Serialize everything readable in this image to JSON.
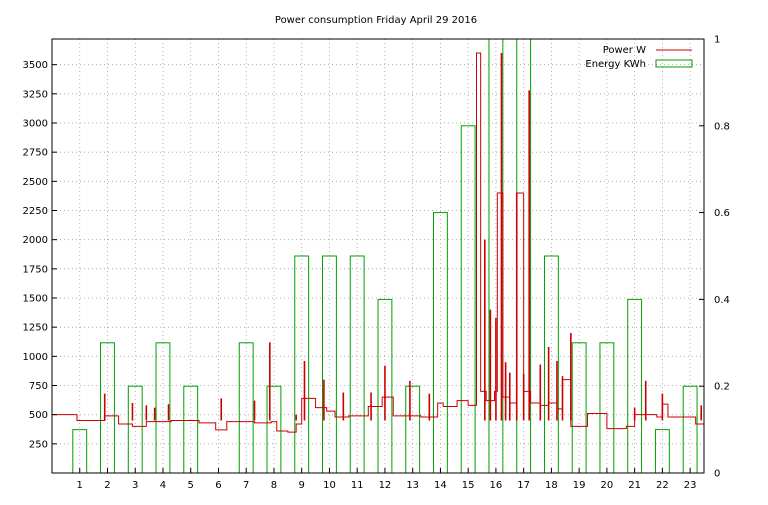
{
  "chart_data": {
    "type": "bar",
    "title": "Power consumption Friday April 29 2016",
    "xlabel": "",
    "ylabel": "",
    "x_ticks": [
      "1",
      "2",
      "3",
      "4",
      "5",
      "6",
      "7",
      "8",
      "9",
      "10",
      "11",
      "12",
      "13",
      "14",
      "15",
      "16",
      "17",
      "18",
      "19",
      "20",
      "21",
      "22",
      "23"
    ],
    "x_range": [
      0,
      23.5
    ],
    "y_left_ticks": [
      250,
      500,
      750,
      1000,
      1250,
      1500,
      1750,
      2000,
      2250,
      2500,
      2750,
      3000,
      3250,
      3500
    ],
    "y_left_range": [
      0,
      3720
    ],
    "y_right_ticks": [
      "0",
      "0.2",
      "0.4",
      "0.6",
      "0.8",
      "1"
    ],
    "y_right_range": [
      0,
      1
    ],
    "grid": true,
    "legend_position": "top-right",
    "series": [
      {
        "name": "Power W",
        "color": "#cc0000",
        "kind": "step",
        "axis": "left",
        "x": [
          0.0,
          0.9,
          1.9,
          2.4,
          2.9,
          3.4,
          4.3,
          5.3,
          5.9,
          6.3,
          7.3,
          7.9,
          8.1,
          8.5,
          8.8,
          9.0,
          9.5,
          9.9,
          10.2,
          10.7,
          11.4,
          11.9,
          12.3,
          12.6,
          13.3,
          13.9,
          14.1,
          14.6,
          15.0,
          15.3,
          15.45,
          15.65,
          15.95,
          16.05,
          16.25,
          16.5,
          16.75,
          17.0,
          17.25,
          17.6,
          17.9,
          18.2,
          18.4,
          18.7,
          19.3,
          20.0,
          20.7,
          21.0,
          21.8,
          22.0,
          22.2,
          23.2,
          23.5
        ],
        "y": [
          500,
          450,
          490,
          420,
          400,
          440,
          450,
          430,
          370,
          440,
          430,
          440,
          360,
          350,
          420,
          640,
          560,
          530,
          480,
          490,
          570,
          650,
          490,
          490,
          480,
          600,
          570,
          620,
          580,
          3600,
          700,
          620,
          700,
          2400,
          650,
          600,
          2400,
          700,
          600,
          580,
          600,
          550,
          800,
          400,
          510,
          380,
          400,
          500,
          480,
          590,
          480,
          420,
          500
        ],
        "spikes": [
          [
            1.9,
            680
          ],
          [
            2.9,
            600
          ],
          [
            3.4,
            580
          ],
          [
            3.7,
            560
          ],
          [
            4.2,
            590
          ],
          [
            6.1,
            640
          ],
          [
            7.3,
            620
          ],
          [
            7.85,
            1120
          ],
          [
            8.8,
            500
          ],
          [
            9.1,
            960
          ],
          [
            9.8,
            800
          ],
          [
            10.5,
            690
          ],
          [
            11.5,
            690
          ],
          [
            12.0,
            920
          ],
          [
            12.9,
            790
          ],
          [
            13.6,
            680
          ],
          [
            15.6,
            2000
          ],
          [
            15.8,
            1400
          ],
          [
            16.0,
            1330
          ],
          [
            16.2,
            3600
          ],
          [
            16.35,
            950
          ],
          [
            16.5,
            860
          ],
          [
            16.75,
            2400
          ],
          [
            17.0,
            850
          ],
          [
            17.2,
            3280
          ],
          [
            17.6,
            930
          ],
          [
            17.9,
            1080
          ],
          [
            18.2,
            960
          ],
          [
            18.4,
            830
          ],
          [
            18.7,
            1200
          ],
          [
            21.0,
            560
          ],
          [
            21.4,
            790
          ],
          [
            22.0,
            680
          ],
          [
            23.4,
            580
          ]
        ]
      },
      {
        "name": "Energy KWh",
        "color": "#00a000",
        "kind": "bar",
        "axis": "right",
        "categories": [
          "1",
          "2",
          "3",
          "4",
          "5",
          "6",
          "7",
          "8",
          "9",
          "10",
          "11",
          "12",
          "13",
          "14",
          "15",
          "16",
          "17",
          "18",
          "19",
          "20",
          "21",
          "22",
          "23"
        ],
        "values": [
          0.1,
          0.3,
          0.2,
          0.3,
          0.2,
          0.0,
          0.3,
          0.2,
          0.5,
          0.5,
          0.5,
          0.4,
          0.2,
          0.6,
          0.8,
          1.0,
          1.0,
          0.5,
          0.3,
          0.3,
          0.4,
          0.1,
          0.2
        ]
      }
    ]
  }
}
